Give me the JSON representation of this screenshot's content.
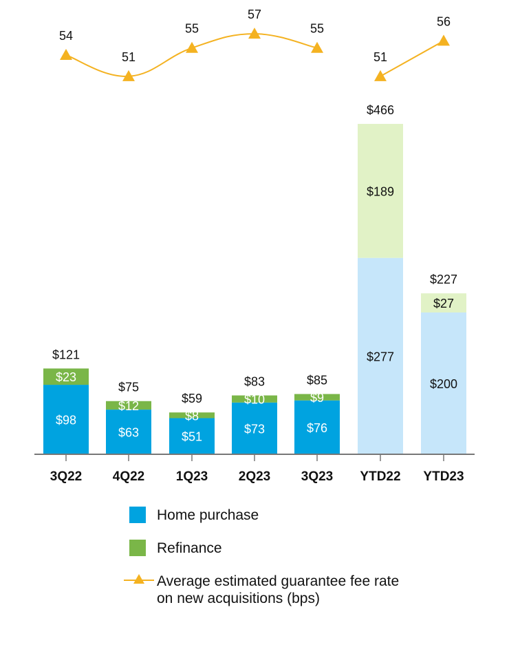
{
  "chart_data": {
    "type": "bar",
    "stacked": true,
    "categories": [
      "3Q22",
      "4Q22",
      "1Q23",
      "2Q23",
      "3Q23",
      "YTD22",
      "YTD23"
    ],
    "series": [
      {
        "name": "Home purchase",
        "values": [
          98,
          63,
          51,
          73,
          76,
          277,
          200
        ],
        "labels": [
          "$98",
          "$63",
          "$51",
          "$73",
          "$76",
          "$277",
          "$200"
        ]
      },
      {
        "name": "Refinance",
        "values": [
          23,
          12,
          8,
          10,
          9,
          189,
          27
        ],
        "labels": [
          "$23",
          "$12",
          "$8",
          "$10",
          "$9",
          "$189",
          "$27"
        ]
      }
    ],
    "totals": [
      121,
      75,
      59,
      83,
      85,
      466,
      227
    ],
    "total_labels": [
      "$121",
      "$75",
      "$59",
      "$83",
      "$85",
      "$466",
      "$227"
    ],
    "line": {
      "name": "Average estimated guarantee fee rate on new acquisitions (bps)",
      "values": [
        54,
        51,
        55,
        57,
        55,
        51,
        56
      ],
      "labels": [
        "54",
        "51",
        "55",
        "57",
        "55",
        "51",
        "56"
      ],
      "connected_groups": [
        [
          0,
          1,
          2,
          3,
          4
        ],
        [
          5,
          6
        ]
      ]
    },
    "ylim": [
      0,
      500
    ],
    "grid": false,
    "legend_position": "bottom"
  },
  "colors": {
    "home_purchase": "#00a3e0",
    "refinance": "#7ab648",
    "home_purchase_ytd": "#c6e6fa",
    "refinance_ytd": "#e1f2c6",
    "line": "#f4b221",
    "axis": "#777777"
  },
  "legend": {
    "home_purchase": "Home purchase",
    "refinance": "Refinance",
    "line": "Average estimated guarantee fee rate\non new acquisitions (bps)"
  }
}
